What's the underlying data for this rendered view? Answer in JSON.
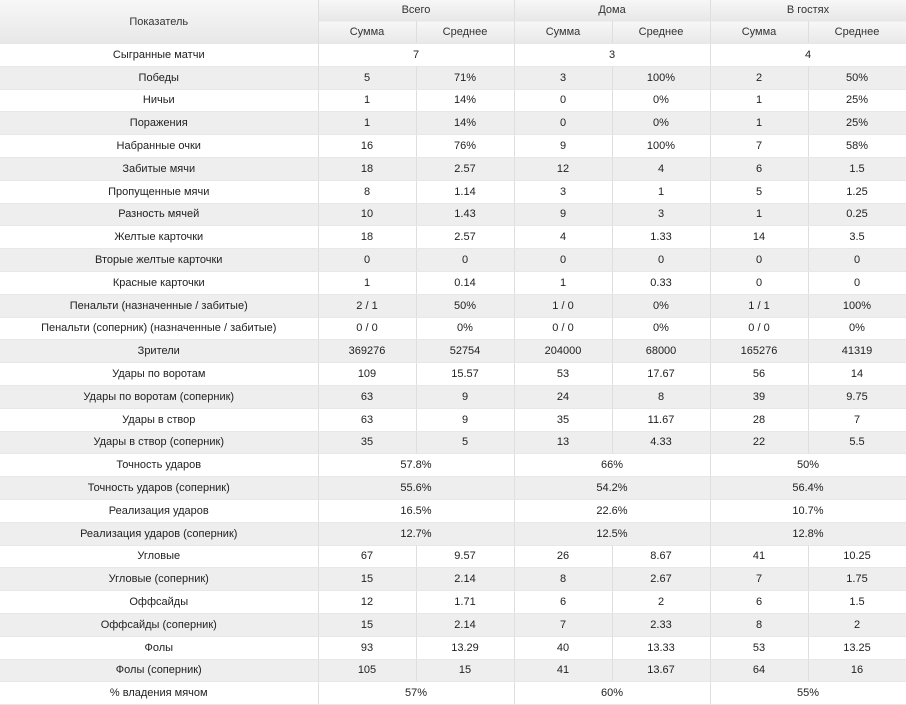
{
  "header": {
    "indicator": "Показатель",
    "groups": [
      "Всего",
      "Дома",
      "В гостях"
    ],
    "sum": "Сумма",
    "avg": "Среднее"
  },
  "rows": [
    {
      "label": "Сыгранные матчи",
      "merged": [
        "7",
        "3",
        "4"
      ]
    },
    {
      "label": "Победы",
      "cells": [
        "5",
        "71%",
        "3",
        "100%",
        "2",
        "50%"
      ]
    },
    {
      "label": "Ничьи",
      "cells": [
        "1",
        "14%",
        "0",
        "0%",
        "1",
        "25%"
      ]
    },
    {
      "label": "Поражения",
      "cells": [
        "1",
        "14%",
        "0",
        "0%",
        "1",
        "25%"
      ]
    },
    {
      "label": "Набранные очки",
      "cells": [
        "16",
        "76%",
        "9",
        "100%",
        "7",
        "58%"
      ]
    },
    {
      "label": "Забитые мячи",
      "cells": [
        "18",
        "2.57",
        "12",
        "4",
        "6",
        "1.5"
      ]
    },
    {
      "label": "Пропущенные мячи",
      "cells": [
        "8",
        "1.14",
        "3",
        "1",
        "5",
        "1.25"
      ]
    },
    {
      "label": "Разность мячей",
      "cells": [
        "10",
        "1.43",
        "9",
        "3",
        "1",
        "0.25"
      ]
    },
    {
      "label": "Желтые карточки",
      "cells": [
        "18",
        "2.57",
        "4",
        "1.33",
        "14",
        "3.5"
      ]
    },
    {
      "label": "Вторые желтые карточки",
      "cells": [
        "0",
        "0",
        "0",
        "0",
        "0",
        "0"
      ]
    },
    {
      "label": "Красные карточки",
      "cells": [
        "1",
        "0.14",
        "1",
        "0.33",
        "0",
        "0"
      ]
    },
    {
      "label": "Пенальти (назначенные / забитые)",
      "cells": [
        "2 / 1",
        "50%",
        "1 / 0",
        "0%",
        "1 / 1",
        "100%"
      ]
    },
    {
      "label": "Пенальти (соперник) (назначенные / забитые)",
      "cells": [
        "0 / 0",
        "0%",
        "0 / 0",
        "0%",
        "0 / 0",
        "0%"
      ]
    },
    {
      "label": "Зрители",
      "cells": [
        "369276",
        "52754",
        "204000",
        "68000",
        "165276",
        "41319"
      ]
    },
    {
      "label": "Удары по воротам",
      "cells": [
        "109",
        "15.57",
        "53",
        "17.67",
        "56",
        "14"
      ]
    },
    {
      "label": "Удары по воротам (соперник)",
      "cells": [
        "63",
        "9",
        "24",
        "8",
        "39",
        "9.75"
      ]
    },
    {
      "label": "Удары в створ",
      "cells": [
        "63",
        "9",
        "35",
        "11.67",
        "28",
        "7"
      ]
    },
    {
      "label": "Удары в створ (соперник)",
      "cells": [
        "35",
        "5",
        "13",
        "4.33",
        "22",
        "5.5"
      ]
    },
    {
      "label": "Точность ударов",
      "merged": [
        "57.8%",
        "66%",
        "50%"
      ]
    },
    {
      "label": "Точность ударов (соперник)",
      "merged": [
        "55.6%",
        "54.2%",
        "56.4%"
      ]
    },
    {
      "label": "Реализация ударов",
      "merged": [
        "16.5%",
        "22.6%",
        "10.7%"
      ]
    },
    {
      "label": "Реализация ударов (соперник)",
      "merged": [
        "12.7%",
        "12.5%",
        "12.8%"
      ]
    },
    {
      "label": "Угловые",
      "cells": [
        "67",
        "9.57",
        "26",
        "8.67",
        "41",
        "10.25"
      ]
    },
    {
      "label": "Угловые (соперник)",
      "cells": [
        "15",
        "2.14",
        "8",
        "2.67",
        "7",
        "1.75"
      ]
    },
    {
      "label": "Оффсайды",
      "cells": [
        "12",
        "1.71",
        "6",
        "2",
        "6",
        "1.5"
      ]
    },
    {
      "label": "Оффсайды (соперник)",
      "cells": [
        "15",
        "2.14",
        "7",
        "2.33",
        "8",
        "2"
      ]
    },
    {
      "label": "Фолы",
      "cells": [
        "93",
        "13.29",
        "40",
        "13.33",
        "53",
        "13.25"
      ]
    },
    {
      "label": "Фолы (соперник)",
      "cells": [
        "105",
        "15",
        "41",
        "13.67",
        "64",
        "16"
      ]
    },
    {
      "label": "% владения мячом",
      "merged": [
        "57%",
        "60%",
        "55%"
      ]
    }
  ]
}
